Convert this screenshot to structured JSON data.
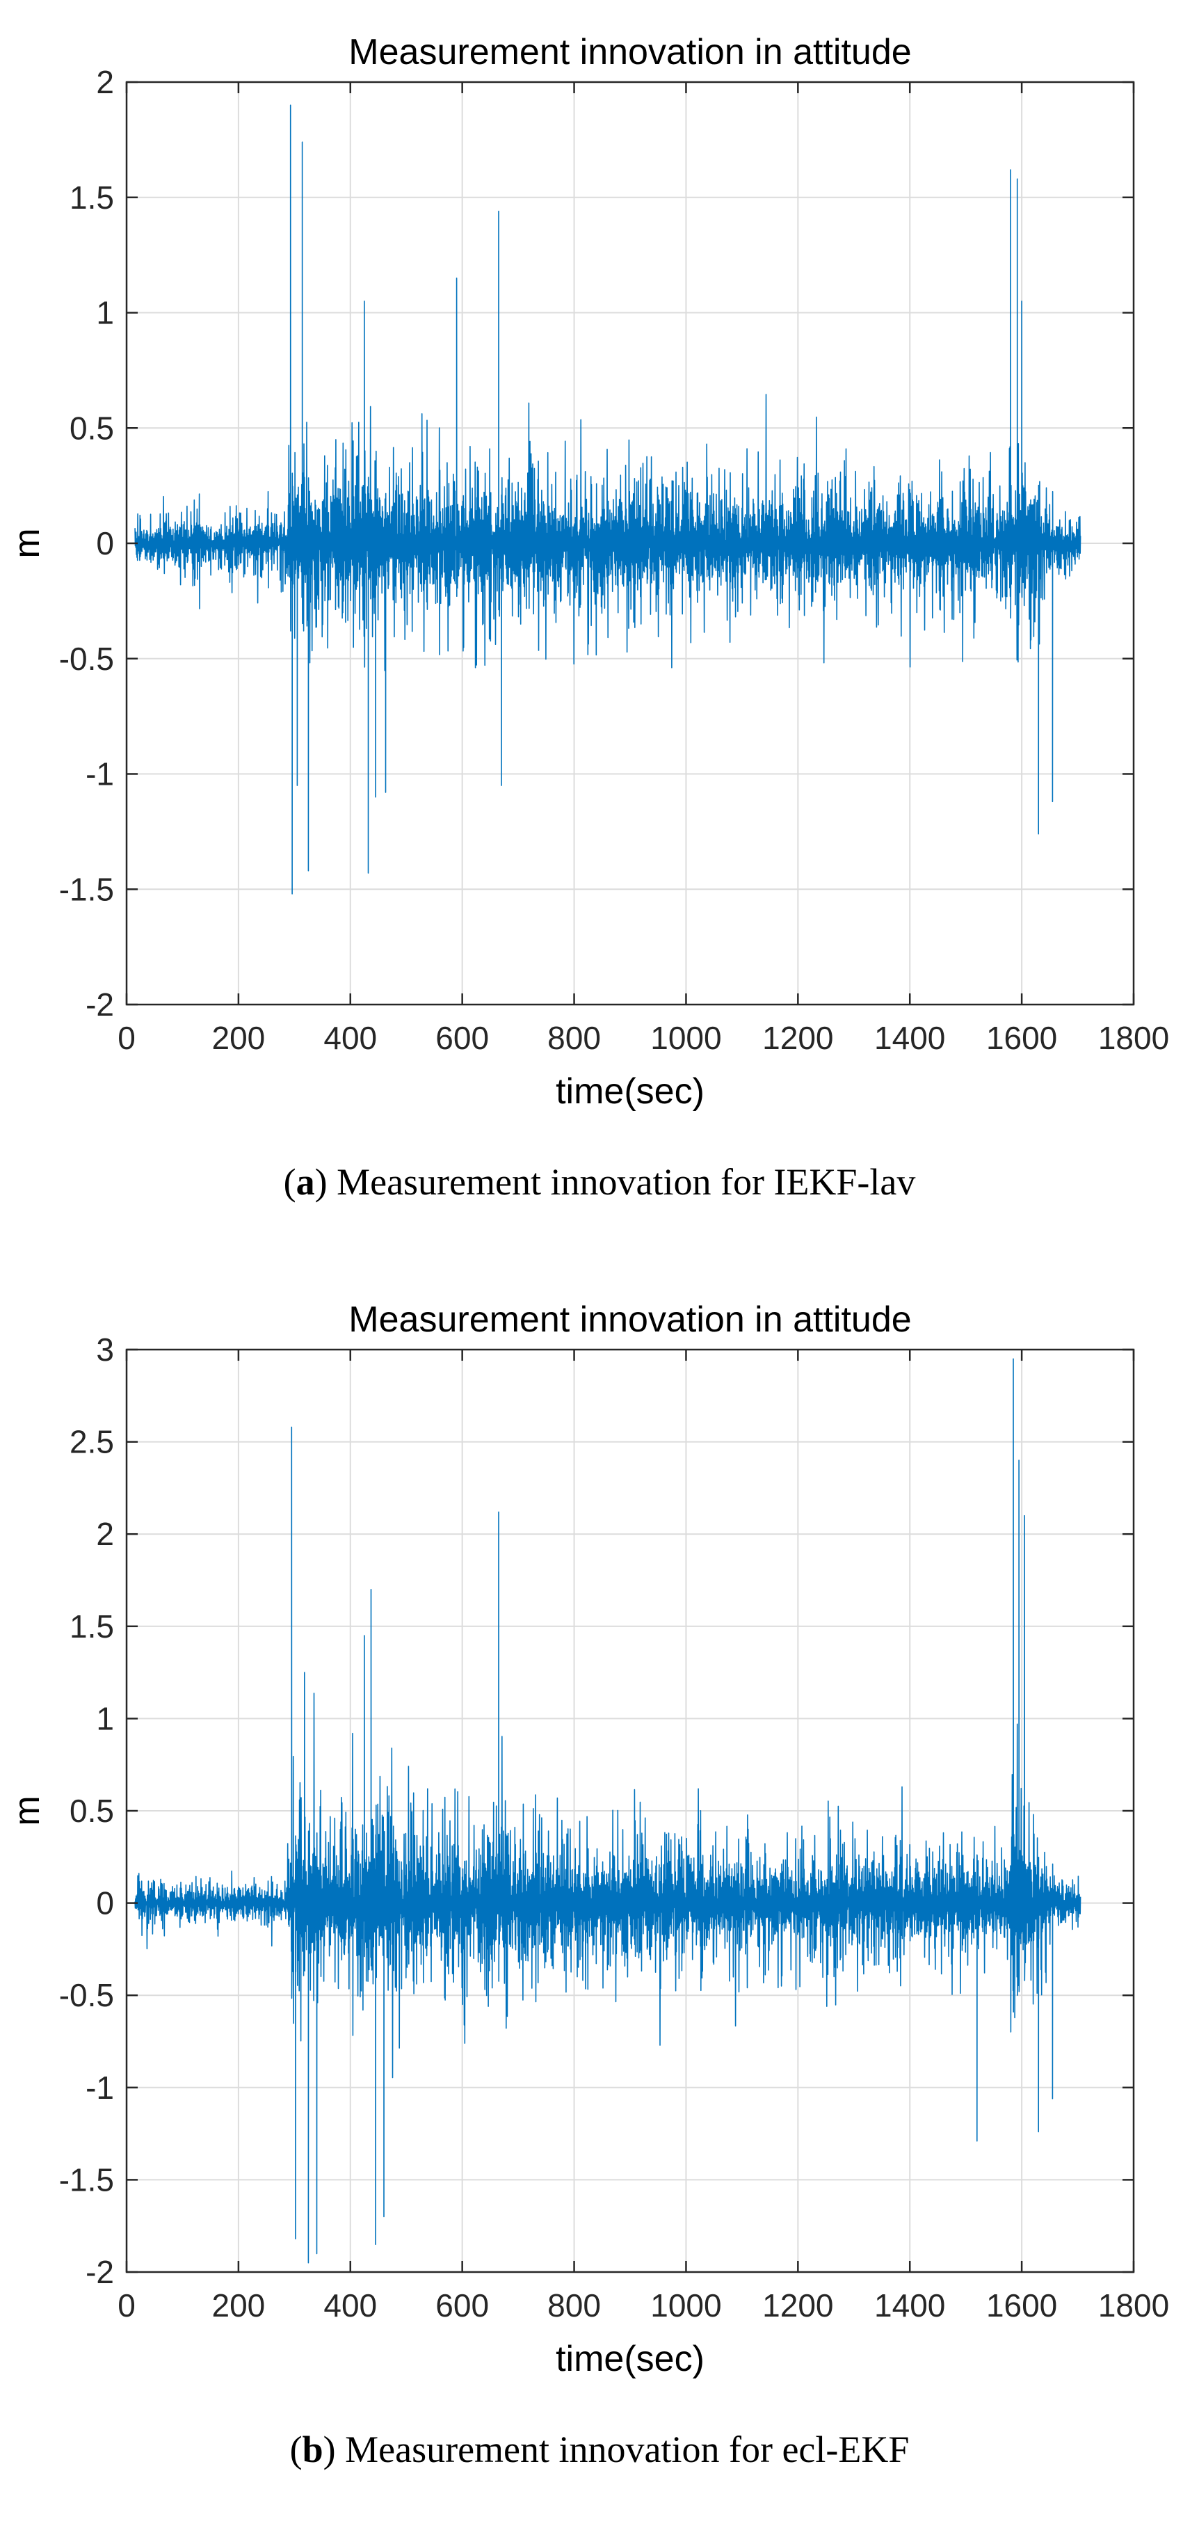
{
  "chart_data": [
    {
      "type": "line",
      "title": "Measurement innovation in attitude",
      "xlabel": "time(sec)",
      "ylabel": "m",
      "xlim": [
        0,
        1800
      ],
      "ylim": [
        -2,
        2
      ],
      "xticks": [
        0,
        200,
        400,
        600,
        800,
        1000,
        1200,
        1400,
        1600,
        1800
      ],
      "yticks": [
        -2,
        -1.5,
        -1,
        -0.5,
        0,
        0.5,
        1,
        1.5,
        2
      ],
      "xtick_labels": [
        "0",
        "200",
        "400",
        "600",
        "800",
        "1000",
        "1200",
        "1400",
        "1600",
        "1800"
      ],
      "ytick_labels": [
        "-2",
        "-1.5",
        "-1",
        "-0.5",
        "0",
        "0.5",
        "1",
        "1.5",
        "2"
      ],
      "grid": true,
      "series": [
        {
          "name": "innovation",
          "color": "#0072BD",
          "x_range": [
            15,
            1705
          ],
          "envelope": {
            "time": [
              15,
              100,
              200,
              280,
              300,
              330,
              360,
              400,
              430,
              460,
              500,
              600,
              650,
              700,
              800,
              900,
              1000,
              1100,
              1200,
              1300,
              1400,
              1500,
              1540,
              1570,
              1590,
              1610,
              1630,
              1650,
              1660,
              1705
            ],
            "amplitude": [
              0.3,
              0.3,
              0.3,
              0.3,
              0.85,
              0.75,
              0.55,
              0.75,
              0.85,
              0.75,
              0.7,
              0.75,
              0.75,
              0.7,
              0.55,
              0.65,
              0.6,
              0.55,
              0.55,
              0.55,
              0.5,
              0.55,
              0.5,
              0.5,
              0.9,
              0.85,
              0.6,
              0.4,
              0.25,
              0.25
            ]
          },
          "spikes": [
            {
              "x": 293,
              "y": 1.9
            },
            {
              "x": 296,
              "y": -1.52
            },
            {
              "x": 305,
              "y": -1.05
            },
            {
              "x": 314,
              "y": 1.74
            },
            {
              "x": 325,
              "y": -1.42
            },
            {
              "x": 425,
              "y": 1.05
            },
            {
              "x": 432,
              "y": -1.43
            },
            {
              "x": 445,
              "y": -1.1
            },
            {
              "x": 463,
              "y": -1.08
            },
            {
              "x": 590,
              "y": 1.15
            },
            {
              "x": 665,
              "y": 1.44
            },
            {
              "x": 670,
              "y": -1.05
            },
            {
              "x": 1580,
              "y": 1.62
            },
            {
              "x": 1592,
              "y": 1.58
            },
            {
              "x": 1600,
              "y": 1.05
            },
            {
              "x": 1630,
              "y": -1.26
            },
            {
              "x": 1655,
              "y": -1.12
            }
          ]
        }
      ]
    },
    {
      "type": "line",
      "title": "Measurement innovation in attitude",
      "xlabel": "time(sec)",
      "ylabel": "m",
      "xlim": [
        0,
        1800
      ],
      "ylim": [
        -2,
        3
      ],
      "xticks": [
        0,
        200,
        400,
        600,
        800,
        1000,
        1200,
        1400,
        1600,
        1800
      ],
      "yticks": [
        -2,
        -1.5,
        -1,
        -0.5,
        0,
        0.5,
        1,
        1.5,
        2,
        2.5,
        3
      ],
      "xtick_labels": [
        "0",
        "200",
        "400",
        "600",
        "800",
        "1000",
        "1200",
        "1400",
        "1600",
        "1800"
      ],
      "ytick_labels": [
        "-2",
        "-1.5",
        "-1",
        "-0.5",
        "0",
        "0.5",
        "1",
        "1.5",
        "2",
        "2.5",
        "3"
      ],
      "grid": true,
      "series": [
        {
          "name": "innovation",
          "color": "#0072BD",
          "x_range": [
            15,
            1705
          ],
          "envelope": {
            "time": [
              15,
              100,
              200,
              280,
              300,
              330,
              360,
              400,
              430,
              460,
              500,
              600,
              650,
              700,
              800,
              900,
              1000,
              1100,
              1200,
              1300,
              1400,
              1500,
              1540,
              1570,
              1590,
              1610,
              1630,
              1650,
              1660,
              1705
            ],
            "amplitude": [
              0.25,
              0.25,
              0.25,
              0.25,
              1.3,
              1.2,
              0.6,
              0.9,
              1.25,
              1.1,
              0.9,
              0.9,
              0.95,
              0.85,
              0.75,
              0.8,
              0.75,
              0.65,
              0.65,
              0.7,
              0.6,
              0.6,
              0.5,
              0.55,
              1.5,
              1.3,
              0.8,
              0.5,
              0.25,
              0.25
            ]
          },
          "spikes": [
            {
              "x": 295,
              "y": 2.58
            },
            {
              "x": 302,
              "y": -1.82
            },
            {
              "x": 318,
              "y": 1.25
            },
            {
              "x": 325,
              "y": -1.95
            },
            {
              "x": 340,
              "y": -1.9
            },
            {
              "x": 425,
              "y": 1.45
            },
            {
              "x": 437,
              "y": 1.7
            },
            {
              "x": 445,
              "y": -1.85
            },
            {
              "x": 460,
              "y": -1.7
            },
            {
              "x": 665,
              "y": 2.12
            },
            {
              "x": 1520,
              "y": -1.29
            },
            {
              "x": 1585,
              "y": 2.95
            },
            {
              "x": 1595,
              "y": 2.4
            },
            {
              "x": 1605,
              "y": 2.1
            },
            {
              "x": 1630,
              "y": -1.24
            },
            {
              "x": 1655,
              "y": -1.06
            }
          ]
        }
      ]
    }
  ],
  "captions": {
    "a_label": "a",
    "a_text": " Measurement innovation for IEKF-lav",
    "b_label": "b",
    "b_text": " Measurement innovation for ecl-EKF"
  }
}
